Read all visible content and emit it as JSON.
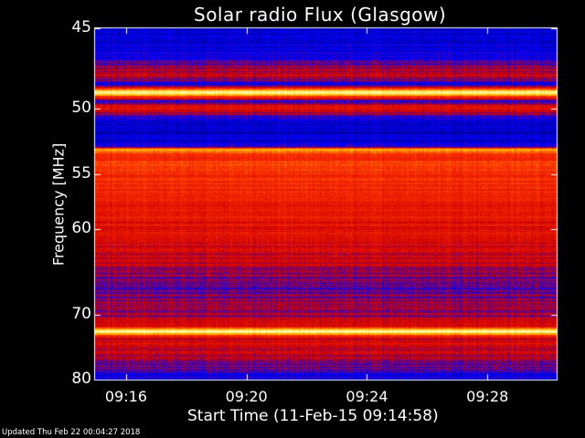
{
  "chart_data": {
    "type": "heatmap",
    "title": "Solar radio Flux (Glasgow)",
    "xlabel": "Start Time (11-Feb-15 09:14:58)",
    "ylabel": "Frequency [MHz]",
    "y_range": [
      45,
      80
    ],
    "y_ticks": [
      "45",
      "50",
      "55",
      "60",
      "70",
      "80"
    ],
    "y_tick_values": [
      45,
      50,
      55,
      60,
      70,
      80
    ],
    "y_scale": "reciprocal",
    "x_ticks": [
      "09:16",
      "09:20",
      "09:24",
      "09:28"
    ],
    "x_tick_minutes": [
      16,
      20,
      24,
      28
    ],
    "x_range_minutes": [
      14.97,
      30.3
    ],
    "colormap": [
      "#00006a",
      "#0000ff",
      "#d00000",
      "#ff3300",
      "#ffd000",
      "#ffffd0"
    ],
    "intensity_profile": [
      {
        "freq": 45.0,
        "level": 0.12
      },
      {
        "freq": 46.5,
        "level": 0.18
      },
      {
        "freq": 47.8,
        "level": 0.42
      },
      {
        "freq": 48.4,
        "level": 0.2
      },
      {
        "freq": 48.9,
        "level": 0.98
      },
      {
        "freq": 49.5,
        "level": 0.2
      },
      {
        "freq": 49.9,
        "level": 0.5
      },
      {
        "freq": 50.8,
        "level": 0.16
      },
      {
        "freq": 52.0,
        "level": 0.12
      },
      {
        "freq": 52.8,
        "level": 0.22
      },
      {
        "freq": 53.0,
        "level": 0.8
      },
      {
        "freq": 53.4,
        "level": 0.56
      },
      {
        "freq": 54.5,
        "level": 0.6
      },
      {
        "freq": 56.0,
        "level": 0.55
      },
      {
        "freq": 58.0,
        "level": 0.5
      },
      {
        "freq": 61.0,
        "level": 0.44
      },
      {
        "freq": 64.0,
        "level": 0.38
      },
      {
        "freq": 66.5,
        "level": 0.28
      },
      {
        "freq": 68.0,
        "level": 0.32
      },
      {
        "freq": 71.5,
        "level": 0.4
      },
      {
        "freq": 72.3,
        "level": 1.0
      },
      {
        "freq": 73.2,
        "level": 0.42
      },
      {
        "freq": 76.0,
        "level": 0.4
      },
      {
        "freq": 78.0,
        "level": 0.3
      },
      {
        "freq": 80.0,
        "level": 0.16
      }
    ]
  },
  "footer": "Updated Thu Feb 22 00:04:27 2018"
}
